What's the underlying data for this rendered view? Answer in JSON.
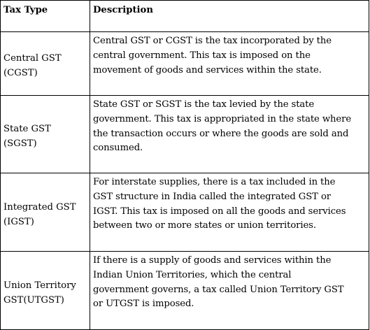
{
  "table": {
    "headers": [
      "Tax Type",
      "Description"
    ],
    "rows": [
      {
        "type_lines": [
          "Central GST",
          "(CGST)"
        ],
        "description_lines": [
          "Central GST or CGST is the tax incorporated by the",
          "central government. This tax is imposed on the",
          "movement of goods and services within the state."
        ]
      },
      {
        "type_lines": [
          "State GST",
          "(SGST)"
        ],
        "description_lines": [
          "State GST or SGST is the tax levied by the state",
          "government. This tax is appropriated in the state where",
          "the transaction occurs or where the goods are sold and",
          "consumed."
        ]
      },
      {
        "type_lines": [
          "Integrated GST",
          "(IGST)"
        ],
        "description_lines": [
          "For interstate supplies, there is a tax included in the",
          "GST structure in India called the integrated GST or",
          "IGST. This tax is imposed on all the goods and services",
          "between two or more states or union territories."
        ]
      },
      {
        "type_lines": [
          "Union Territory",
          "GST(UTGST)"
        ],
        "description_lines": [
          "If there is a supply of goods and services within the",
          "Indian Union Territories, which the central",
          "government governs, a tax called Union Territory GST",
          "or UTGST is imposed."
        ]
      }
    ]
  }
}
